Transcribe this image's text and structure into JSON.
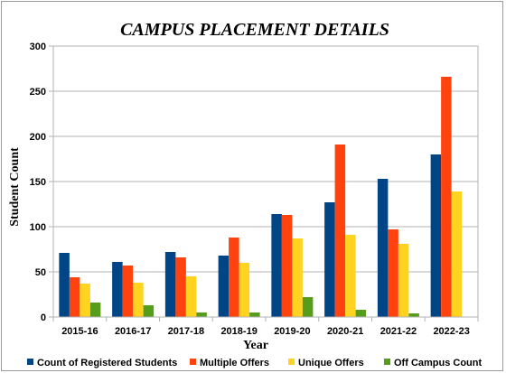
{
  "chart_data": {
    "type": "bar",
    "title": "CAMPUS PLACEMENT DETAILS",
    "xlabel": "Year",
    "ylabel": "Student Count",
    "ylim": [
      0,
      300
    ],
    "yticks": [
      0,
      50,
      100,
      150,
      200,
      250,
      300
    ],
    "grid": true,
    "legend_position": "bottom",
    "categories": [
      "2015-16",
      "2016-17",
      "2017-18",
      "2018-19",
      "2019-20",
      "2020-21",
      "2021-22",
      "2022-23"
    ],
    "series": [
      {
        "name": "Count of Registered Students",
        "color": "#004586",
        "values": [
          71,
          61,
          72,
          68,
          114,
          127,
          153,
          180
        ]
      },
      {
        "name": "Multiple Offers",
        "color": "#ff420e",
        "values": [
          44,
          57,
          66,
          88,
          113,
          191,
          97,
          266
        ]
      },
      {
        "name": "Unique Offers",
        "color": "#ffd320",
        "values": [
          37,
          38,
          45,
          60,
          87,
          91,
          81,
          139
        ]
      },
      {
        "name": "Off Campus Count",
        "color": "#579d1c",
        "values": [
          16,
          13,
          5,
          5,
          22,
          8,
          4,
          0
        ]
      }
    ]
  }
}
